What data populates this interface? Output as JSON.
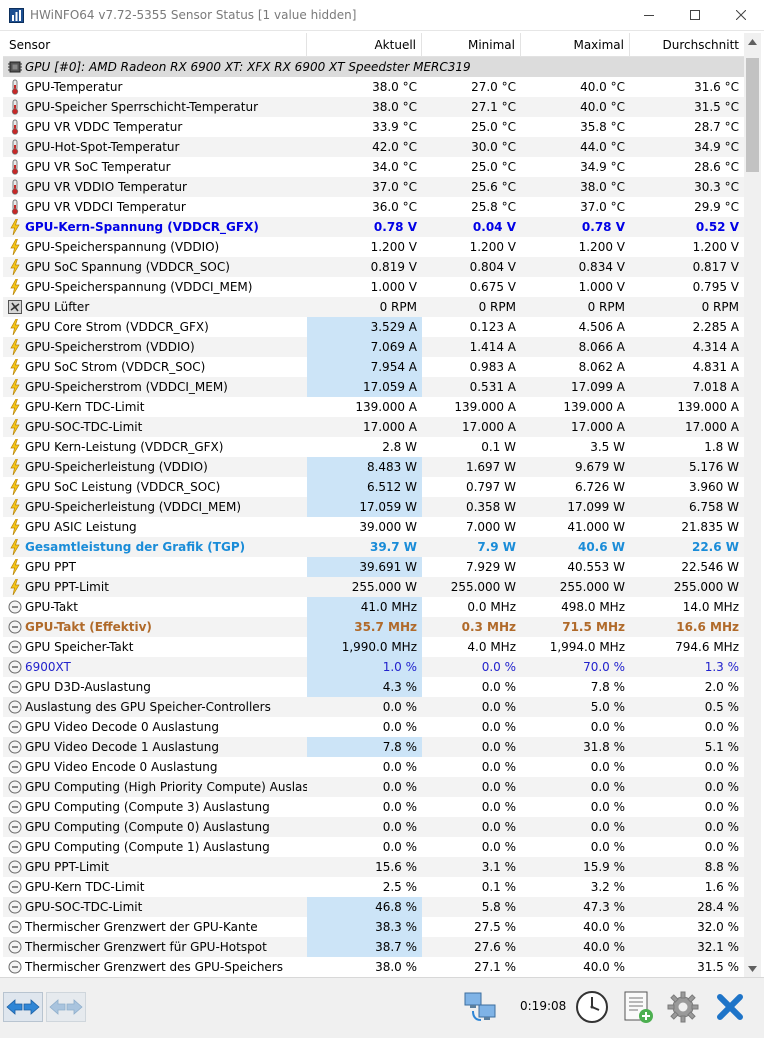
{
  "window": {
    "title": "HWiNFO64 v7.72-5355 Sensor Status [1 value hidden]",
    "minimize_symbol": "—",
    "maximize_symbol": "☐",
    "close_symbol": "✕"
  },
  "columns": {
    "sensor": "Sensor",
    "current": "Aktuell",
    "minimum": "Minimal",
    "maximum": "Maximal",
    "average": "Durchschnitt"
  },
  "rows": [
    {
      "icon": "gpu-chip-icon",
      "label": "GPU [#0]: AMD Radeon RX 6900 XT: XFX RX 6900 XT Speedster MERC319",
      "group": true
    },
    {
      "icon": "thermometer-icon",
      "label": "GPU-Temperatur",
      "cur": "38.0 °C",
      "min": "27.0 °C",
      "max": "40.0 °C",
      "avg": "31.6 °C"
    },
    {
      "icon": "thermometer-icon",
      "label": "GPU-Speicher Sperrschicht-Temperatur",
      "cur": "38.0 °C",
      "min": "27.1 °C",
      "max": "40.0 °C",
      "avg": "31.5 °C"
    },
    {
      "icon": "thermometer-icon",
      "label": "GPU VR VDDC Temperatur",
      "cur": "33.9 °C",
      "min": "25.0 °C",
      "max": "35.8 °C",
      "avg": "28.7 °C"
    },
    {
      "icon": "thermometer-icon",
      "label": "GPU-Hot-Spot-Temperatur",
      "cur": "42.0 °C",
      "min": "30.0 °C",
      "max": "44.0 °C",
      "avg": "34.9 °C"
    },
    {
      "icon": "thermometer-icon",
      "label": "GPU VR SoC Temperatur",
      "cur": "34.0 °C",
      "min": "25.0 °C",
      "max": "34.9 °C",
      "avg": "28.6 °C"
    },
    {
      "icon": "thermometer-icon",
      "label": "GPU VR VDDIO Temperatur",
      "cur": "37.0 °C",
      "min": "25.6 °C",
      "max": "38.0 °C",
      "avg": "30.3 °C"
    },
    {
      "icon": "thermometer-icon",
      "label": "GPU VR VDDCI Temperatur",
      "cur": "36.0 °C",
      "min": "25.8 °C",
      "max": "37.0 °C",
      "avg": "29.9 °C"
    },
    {
      "icon": "lightning-icon",
      "label": "GPU-Kern-Spannung (VDDCR_GFX)",
      "cur": "0.78 V",
      "min": "0.04 V",
      "max": "0.78 V",
      "avg": "0.52 V",
      "style": "bold-blue"
    },
    {
      "icon": "lightning-icon",
      "label": "GPU-Speicherspannung (VDDIO)",
      "cur": "1.200 V",
      "min": "1.200 V",
      "max": "1.200 V",
      "avg": "1.200 V"
    },
    {
      "icon": "lightning-icon",
      "label": "GPU SoC Spannung (VDDCR_SOC)",
      "cur": "0.819 V",
      "min": "0.804 V",
      "max": "0.834 V",
      "avg": "0.817 V"
    },
    {
      "icon": "lightning-icon",
      "label": "GPU-Speicherspannung (VDDCI_MEM)",
      "cur": "1.000 V",
      "min": "0.675 V",
      "max": "1.000 V",
      "avg": "0.795 V"
    },
    {
      "icon": "fan-icon",
      "label": "GPU Lüfter",
      "cur": "0 RPM",
      "min": "0 RPM",
      "max": "0 RPM",
      "avg": "0 RPM"
    },
    {
      "icon": "lightning-icon",
      "label": "GPU Core Strom (VDDCR_GFX)",
      "cur": "3.529 A",
      "min": "0.123 A",
      "max": "4.506 A",
      "avg": "2.285 A",
      "hl": true
    },
    {
      "icon": "lightning-icon",
      "label": "GPU-Speicherstrom (VDDIO)",
      "cur": "7.069 A",
      "min": "1.414 A",
      "max": "8.066 A",
      "avg": "4.314 A",
      "hl": true
    },
    {
      "icon": "lightning-icon",
      "label": "GPU SoC Strom (VDDCR_SOC)",
      "cur": "7.954 A",
      "min": "0.983 A",
      "max": "8.062 A",
      "avg": "4.831 A",
      "hl": true
    },
    {
      "icon": "lightning-icon",
      "label": "GPU-Speicherstrom (VDDCI_MEM)",
      "cur": "17.059 A",
      "min": "0.531 A",
      "max": "17.099 A",
      "avg": "7.018 A",
      "hl": true
    },
    {
      "icon": "lightning-icon",
      "label": "GPU-Kern TDC-Limit",
      "cur": "139.000 A",
      "min": "139.000 A",
      "max": "139.000 A",
      "avg": "139.000 A"
    },
    {
      "icon": "lightning-icon",
      "label": "GPU-SOC-TDC-Limit",
      "cur": "17.000 A",
      "min": "17.000 A",
      "max": "17.000 A",
      "avg": "17.000 A"
    },
    {
      "icon": "lightning-icon",
      "label": "GPU Kern-Leistung (VDDCR_GFX)",
      "cur": "2.8 W",
      "min": "0.1 W",
      "max": "3.5 W",
      "avg": "1.8 W"
    },
    {
      "icon": "lightning-icon",
      "label": "GPU-Speicherleistung (VDDIO)",
      "cur": "8.483 W",
      "min": "1.697 W",
      "max": "9.679 W",
      "avg": "5.176 W",
      "hl": true
    },
    {
      "icon": "lightning-icon",
      "label": "GPU SoC Leistung (VDDCR_SOC)",
      "cur": "6.512 W",
      "min": "0.797 W",
      "max": "6.726 W",
      "avg": "3.960 W",
      "hl": true
    },
    {
      "icon": "lightning-icon",
      "label": "GPU-Speicherleistung (VDDCI_MEM)",
      "cur": "17.059 W",
      "min": "0.358 W",
      "max": "17.099 W",
      "avg": "6.758 W",
      "hl": true
    },
    {
      "icon": "lightning-icon",
      "label": "GPU ASIC Leistung",
      "cur": "39.000 W",
      "min": "7.000 W",
      "max": "41.000 W",
      "avg": "21.835 W"
    },
    {
      "icon": "lightning-icon",
      "label": "Gesamtleistung der Grafik (TGP)",
      "cur": "39.7 W",
      "min": "7.9 W",
      "max": "40.6 W",
      "avg": "22.6 W",
      "style": "bold-lblue"
    },
    {
      "icon": "lightning-icon",
      "label": "GPU PPT",
      "cur": "39.691 W",
      "min": "7.929 W",
      "max": "40.553 W",
      "avg": "22.546 W",
      "hl": true
    },
    {
      "icon": "lightning-icon",
      "label": "GPU PPT-Limit",
      "cur": "255.000 W",
      "min": "255.000 W",
      "max": "255.000 W",
      "avg": "255.000 W"
    },
    {
      "icon": "gauge-icon",
      "label": "GPU-Takt",
      "cur": "41.0 MHz",
      "min": "0.0 MHz",
      "max": "498.0 MHz",
      "avg": "14.0 MHz",
      "hl": true
    },
    {
      "icon": "gauge-icon",
      "label": "GPU-Takt (Effektiv)",
      "cur": "35.7 MHz",
      "min": "0.3 MHz",
      "max": "71.5 MHz",
      "avg": "16.6 MHz",
      "style": "bold-brown",
      "hl": true
    },
    {
      "icon": "gauge-icon",
      "label": "GPU Speicher-Takt",
      "cur": "1,990.0 MHz",
      "min": "4.0 MHz",
      "max": "1,994.0 MHz",
      "avg": "794.6 MHz",
      "hl": true
    },
    {
      "icon": "gauge-icon",
      "label": "6900XT",
      "cur": "1.0 %",
      "min": "0.0 %",
      "max": "70.0 %",
      "avg": "1.3 %",
      "style": "blue",
      "hl": true
    },
    {
      "icon": "gauge-icon",
      "label": "GPU D3D-Auslastung",
      "cur": "4.3 %",
      "min": "0.0 %",
      "max": "7.8 %",
      "avg": "2.0 %",
      "hl": true
    },
    {
      "icon": "gauge-icon",
      "label": "Auslastung des GPU Speicher-Controllers",
      "cur": "0.0 %",
      "min": "0.0 %",
      "max": "5.0 %",
      "avg": "0.5 %"
    },
    {
      "icon": "gauge-icon",
      "label": "GPU Video Decode 0 Auslastung",
      "cur": "0.0 %",
      "min": "0.0 %",
      "max": "0.0 %",
      "avg": "0.0 %"
    },
    {
      "icon": "gauge-icon",
      "label": "GPU Video Decode 1 Auslastung",
      "cur": "7.8 %",
      "min": "0.0 %",
      "max": "31.8 %",
      "avg": "5.1 %",
      "hl": true
    },
    {
      "icon": "gauge-icon",
      "label": "GPU Video Encode 0 Auslastung",
      "cur": "0.0 %",
      "min": "0.0 %",
      "max": "0.0 %",
      "avg": "0.0 %"
    },
    {
      "icon": "gauge-icon",
      "label": "GPU Computing (High Priority Compute) Auslas...",
      "cur": "0.0 %",
      "min": "0.0 %",
      "max": "0.0 %",
      "avg": "0.0 %"
    },
    {
      "icon": "gauge-icon",
      "label": "GPU Computing (Compute 3) Auslastung",
      "cur": "0.0 %",
      "min": "0.0 %",
      "max": "0.0 %",
      "avg": "0.0 %"
    },
    {
      "icon": "gauge-icon",
      "label": "GPU Computing (Compute 0) Auslastung",
      "cur": "0.0 %",
      "min": "0.0 %",
      "max": "0.0 %",
      "avg": "0.0 %"
    },
    {
      "icon": "gauge-icon",
      "label": "GPU Computing (Compute 1) Auslastung",
      "cur": "0.0 %",
      "min": "0.0 %",
      "max": "0.0 %",
      "avg": "0.0 %"
    },
    {
      "icon": "gauge-icon",
      "label": "GPU PPT-Limit",
      "cur": "15.6 %",
      "min": "3.1 %",
      "max": "15.9 %",
      "avg": "8.8 %"
    },
    {
      "icon": "gauge-icon",
      "label": "GPU-Kern TDC-Limit",
      "cur": "2.5 %",
      "min": "0.1 %",
      "max": "3.2 %",
      "avg": "1.6 %"
    },
    {
      "icon": "gauge-icon",
      "label": "GPU-SOC-TDC-Limit",
      "cur": "46.8 %",
      "min": "5.8 %",
      "max": "47.3 %",
      "avg": "28.4 %",
      "hl": true
    },
    {
      "icon": "gauge-icon",
      "label": "Thermischer Grenzwert der GPU-Kante",
      "cur": "38.3 %",
      "min": "27.5 %",
      "max": "40.0 %",
      "avg": "32.0 %",
      "hl": true
    },
    {
      "icon": "gauge-icon",
      "label": "Thermischer Grenzwert für GPU-Hotspot",
      "cur": "38.7 %",
      "min": "27.6 %",
      "max": "40.0 %",
      "avg": "32.1 %",
      "hl": true
    },
    {
      "icon": "gauge-icon",
      "label": "Thermischer Grenzwert des GPU-Speichers",
      "cur": "38.0 %",
      "min": "27.1 %",
      "max": "40.0 %",
      "avg": "31.5 %"
    }
  ],
  "statusbar": {
    "elapsed_time": "0:19:08"
  },
  "colors": {
    "highlight": "#cce4f7",
    "bold_blue": "#0000e6",
    "light_blue": "#1a8cd8",
    "brown": "#b06a2a",
    "exit_blue": "#1e74c8"
  }
}
